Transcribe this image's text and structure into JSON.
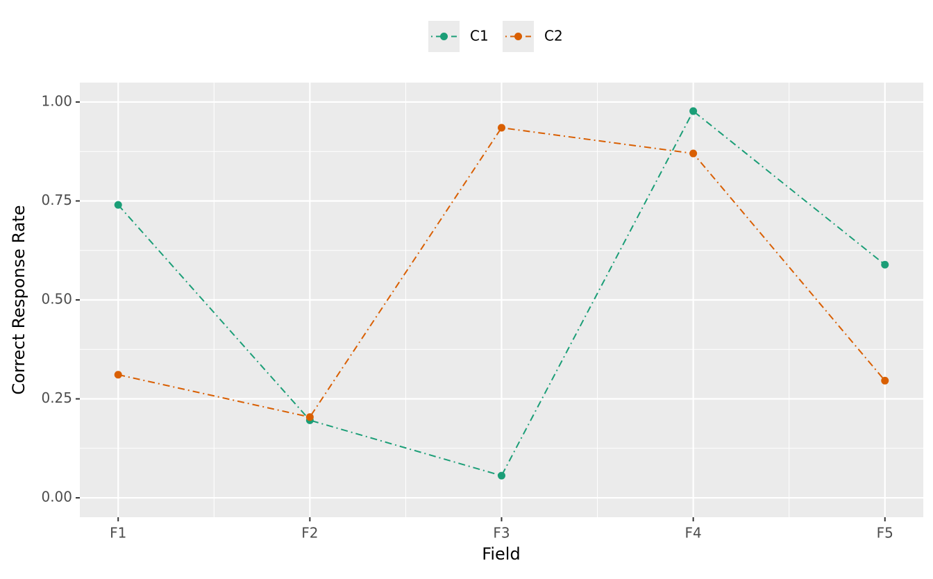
{
  "chart_data": {
    "type": "line",
    "x_label": "Field",
    "y_label": "Correct Response Rate",
    "categories": [
      "F1",
      "F2",
      "F3",
      "F4",
      "F5"
    ],
    "series": [
      {
        "name": "C1",
        "color": "#1b9e77",
        "values": [
          0.74,
          0.196,
          0.056,
          0.977,
          0.589
        ]
      },
      {
        "name": "C2",
        "color": "#d95f02",
        "values": [
          0.311,
          0.204,
          0.935,
          0.87,
          0.296
        ]
      }
    ],
    "ylim": [
      -0.049,
      1.049
    ],
    "yticks": [
      {
        "value": 0,
        "label": "0.00"
      },
      {
        "value": 0.25,
        "label": "0.25"
      },
      {
        "value": 0.5,
        "label": "0.50"
      },
      {
        "value": 0.75,
        "label": "0.75"
      },
      {
        "value": 1,
        "label": "1.00"
      }
    ],
    "grid": true,
    "legend": "top"
  }
}
